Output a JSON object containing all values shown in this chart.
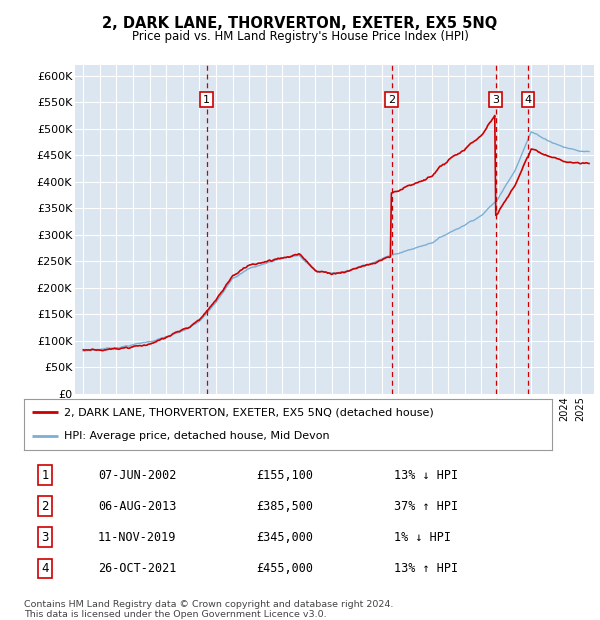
{
  "title": "2, DARK LANE, THORVERTON, EXETER, EX5 5NQ",
  "subtitle": "Price paid vs. HM Land Registry's House Price Index (HPI)",
  "legend_property": "2, DARK LANE, THORVERTON, EXETER, EX5 5NQ (detached house)",
  "legend_hpi": "HPI: Average price, detached house, Mid Devon",
  "footer1": "Contains HM Land Registry data © Crown copyright and database right 2024.",
  "footer2": "This data is licensed under the Open Government Licence v3.0.",
  "property_color": "#cc0000",
  "hpi_color": "#7bafd4",
  "background_plot": "#dce6f1",
  "background_fig": "#ffffff",
  "grid_color": "#ffffff",
  "yticks": [
    0,
    50000,
    100000,
    150000,
    200000,
    250000,
    300000,
    350000,
    400000,
    450000,
    500000,
    550000,
    600000
  ],
  "xlim_start": 1994.5,
  "xlim_end": 2025.8,
  "ylim_max": 620000,
  "sale_events": [
    {
      "num": 1,
      "date": "07-JUN-2002",
      "price": 155100,
      "pct": "13%",
      "dir": "↓",
      "x_year": 2002.44
    },
    {
      "num": 2,
      "date": "06-AUG-2013",
      "price": 385500,
      "pct": "37%",
      "dir": "↑",
      "x_year": 2013.6
    },
    {
      "num": 3,
      "date": "11-NOV-2019",
      "price": 345000,
      "pct": "1%",
      "dir": "↓",
      "x_year": 2019.86
    },
    {
      "num": 4,
      "date": "26-OCT-2021",
      "price": 455000,
      "pct": "13%",
      "dir": "↑",
      "x_year": 2021.82
    }
  ]
}
